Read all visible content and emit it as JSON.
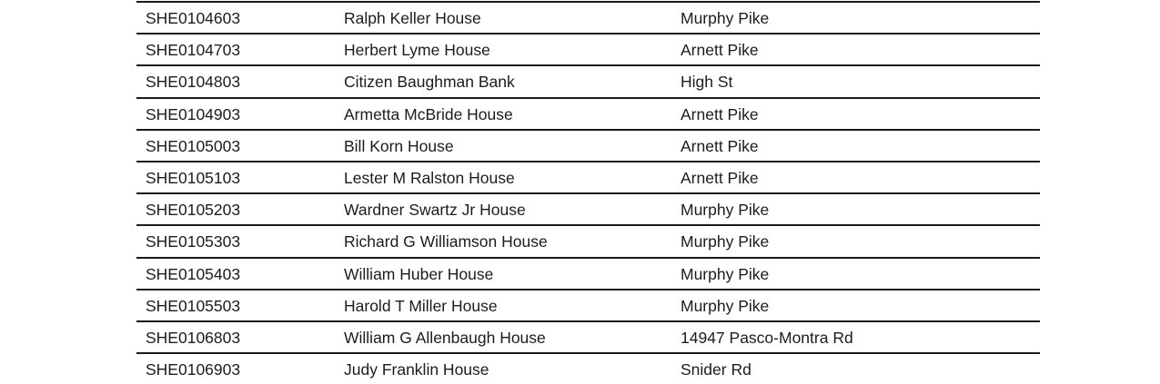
{
  "rows": [
    [
      "SHE0104603",
      "Ralph Keller House",
      "Murphy Pike"
    ],
    [
      "SHE0104703",
      "Herbert Lyme House",
      "Arnett Pike"
    ],
    [
      "SHE0104803",
      "Citizen Baughman Bank",
      "High St"
    ],
    [
      "SHE0104903",
      "Armetta McBride House",
      "Arnett Pike"
    ],
    [
      "SHE0105003",
      "Bill Korn House",
      "Arnett Pike"
    ],
    [
      "SHE0105103",
      "Lester M Ralston House",
      "Arnett Pike"
    ],
    [
      "SHE0105203",
      "Wardner Swartz Jr House",
      "Murphy Pike"
    ],
    [
      "SHE0105303",
      "Richard G Williamson House",
      "Murphy Pike"
    ],
    [
      "SHE0105403",
      "William Huber House",
      "Murphy Pike"
    ],
    [
      "SHE0105503",
      "Harold T Miller House",
      "Murphy Pike"
    ],
    [
      "SHE0106803",
      "William G Allenbaugh House",
      "14947 Pasco-Montra Rd"
    ],
    [
      "SHE0106903",
      "Judy Franklin House",
      "Snider Rd"
    ]
  ]
}
